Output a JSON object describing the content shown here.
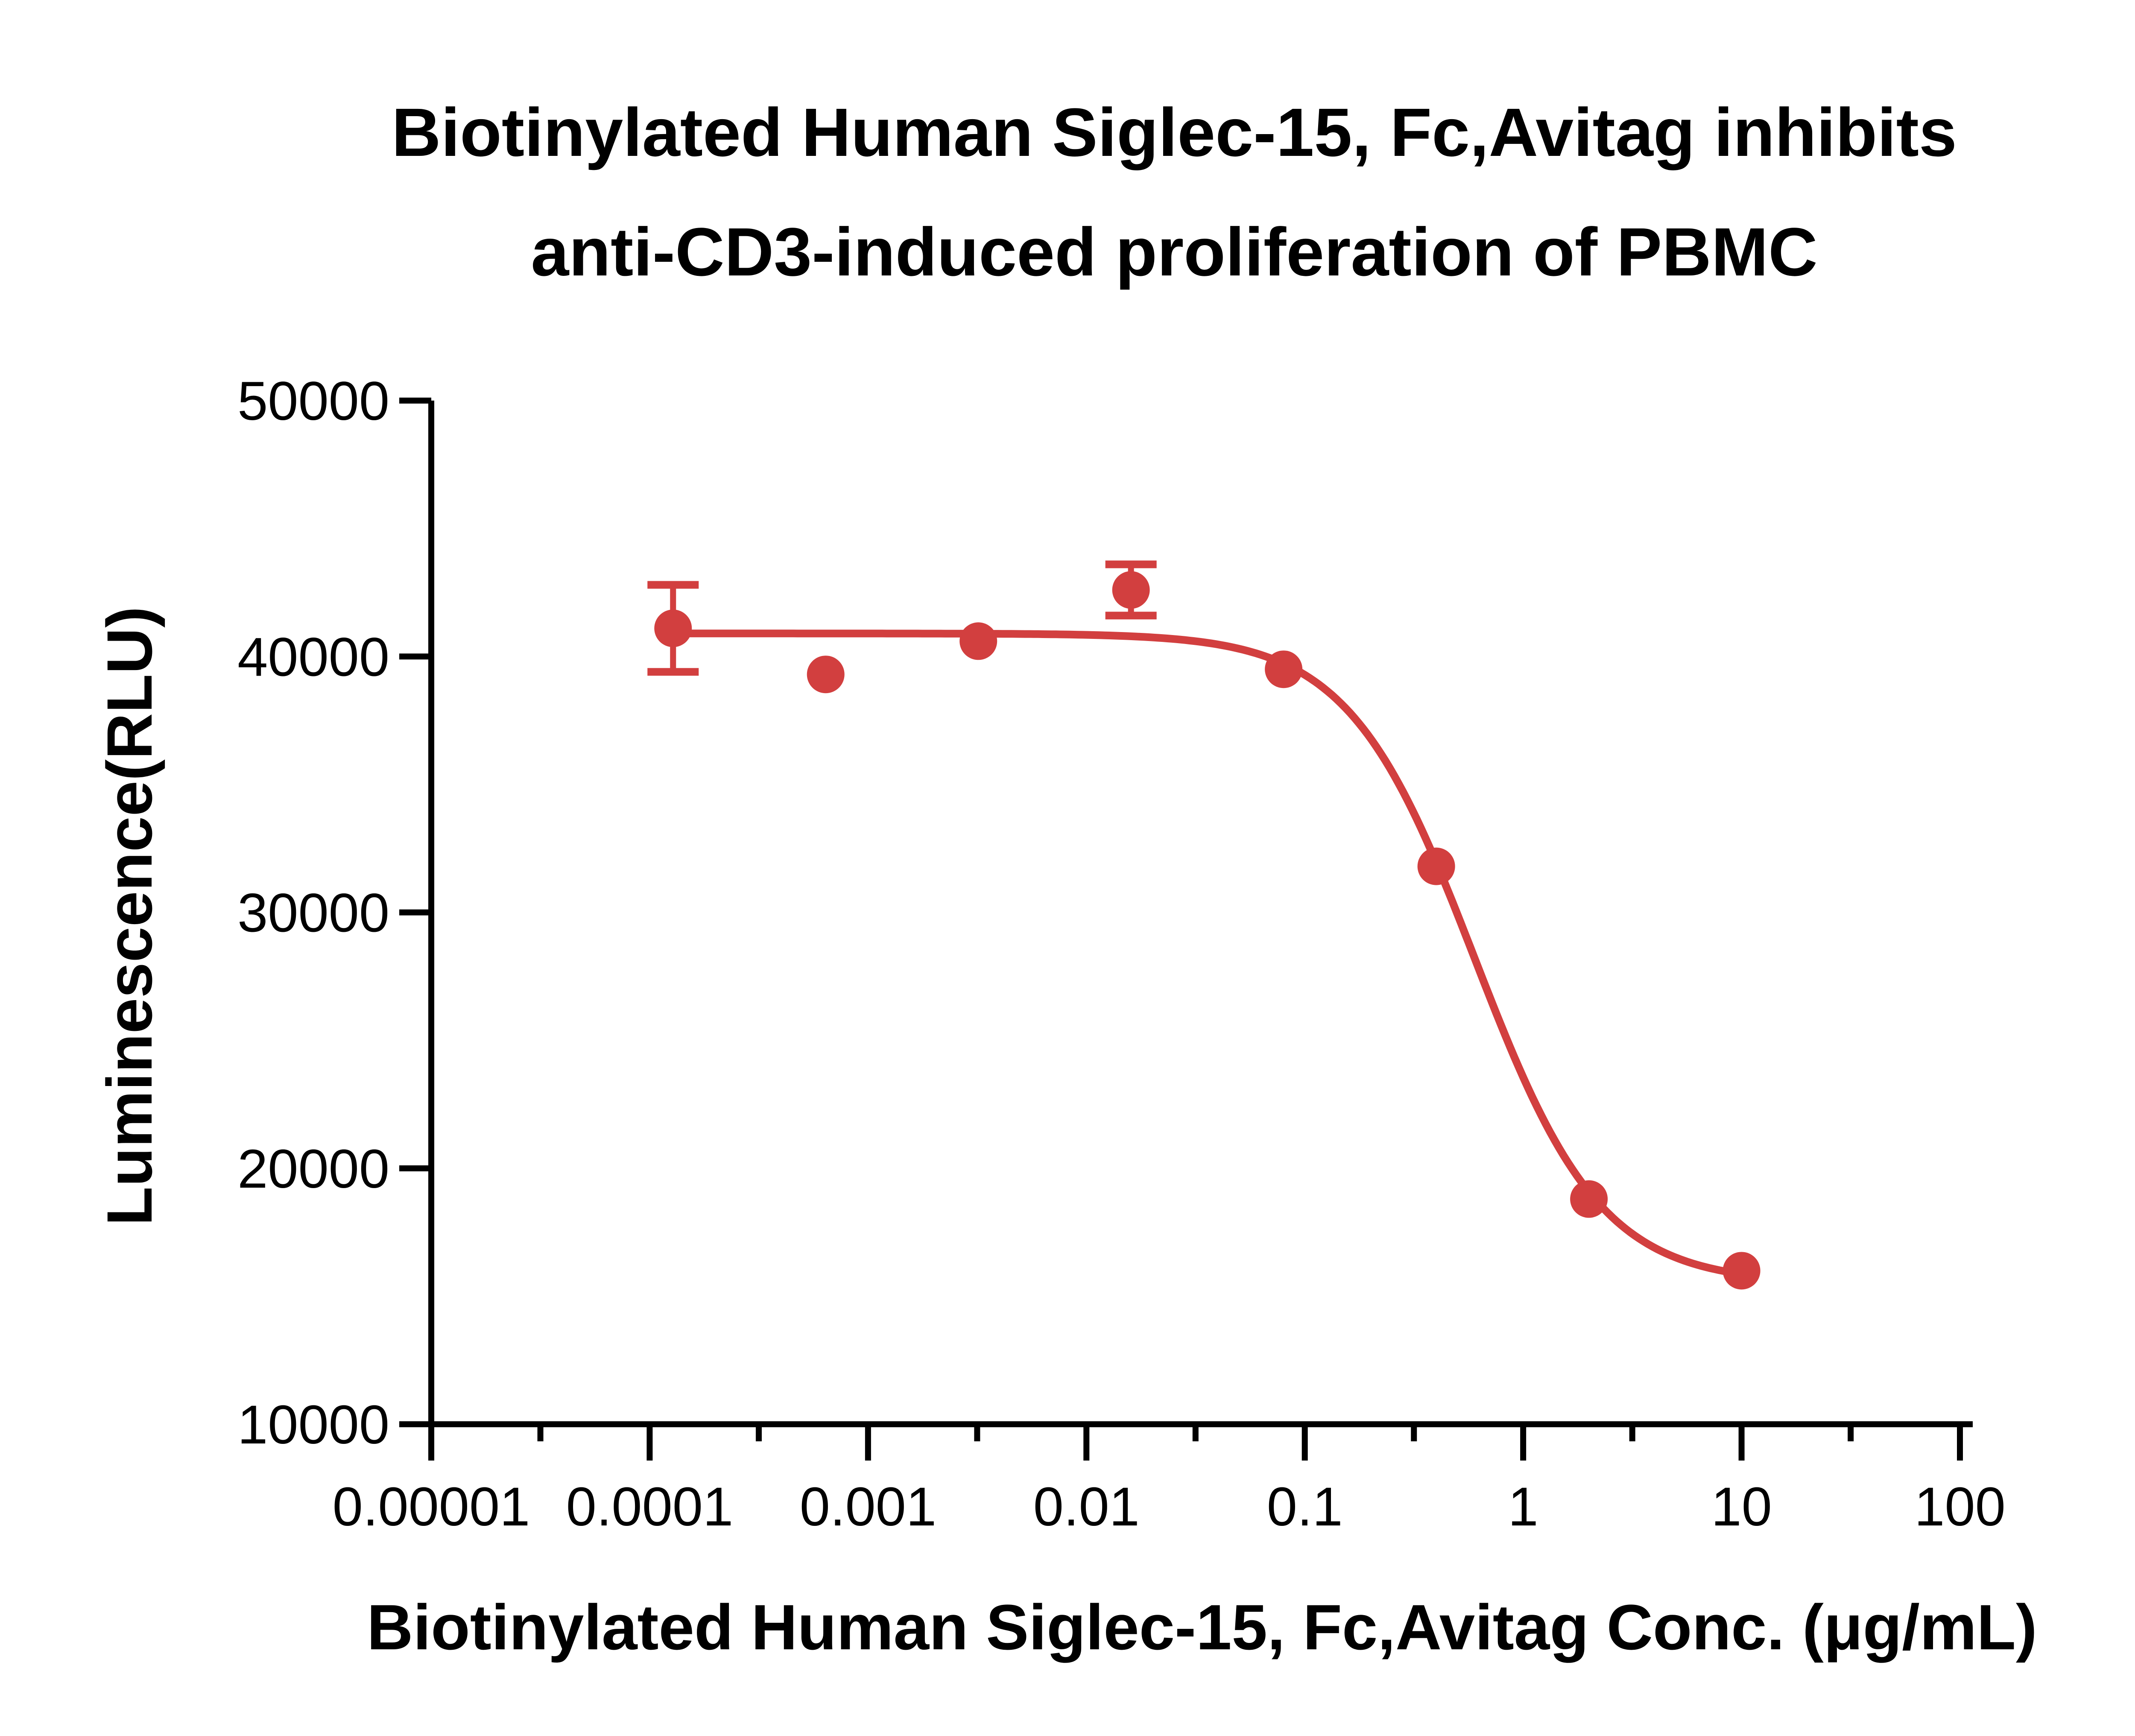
{
  "chart_data": {
    "type": "scatter",
    "title_lines": [
      "Biotinylated Human Siglec-15, Fc,Avitag inhibits",
      "anti-CD3-induced proliferation of PBMC"
    ],
    "xlabel": "Biotinylated Human Siglec-15, Fc,Avitag Conc. (μg/mL)",
    "ylabel": "Luminescence(RLU)",
    "xscale": "log",
    "xlim": [
      1e-05,
      100
    ],
    "ylim": [
      10000,
      50000
    ],
    "x_ticks": [
      {
        "value": 1e-05,
        "label": "0.00001"
      },
      {
        "value": 0.0001,
        "label": "0.0001"
      },
      {
        "value": 0.001,
        "label": "0.001"
      },
      {
        "value": 0.01,
        "label": "0.01"
      },
      {
        "value": 0.1,
        "label": "0.1"
      },
      {
        "value": 1,
        "label": "1"
      },
      {
        "value": 10,
        "label": "10"
      },
      {
        "value": 100,
        "label": "100"
      }
    ],
    "y_ticks": [
      {
        "value": 10000,
        "label": "10000"
      },
      {
        "value": 20000,
        "label": "20000"
      },
      {
        "value": 30000,
        "label": "30000"
      },
      {
        "value": 40000,
        "label": "40000"
      },
      {
        "value": 50000,
        "label": "50000"
      }
    ],
    "color": "#d23f3f",
    "series": [
      {
        "name": "Biotinylated Human Siglec-15, Fc,Avitag",
        "points": [
          {
            "x": 0.000128,
            "y": 41100,
            "err": 1700
          },
          {
            "x": 0.00064,
            "y": 39300,
            "err": 0
          },
          {
            "x": 0.0032,
            "y": 40600,
            "err": 0
          },
          {
            "x": 0.016,
            "y": 42600,
            "err": 1000
          },
          {
            "x": 0.08,
            "y": 39500,
            "err": 0
          },
          {
            "x": 0.4,
            "y": 31800,
            "err": 0
          },
          {
            "x": 2,
            "y": 18800,
            "err": 0
          },
          {
            "x": 10,
            "y": 16000,
            "err": 0
          }
        ],
        "fit": {
          "model": "4PL",
          "top": 40900,
          "bottom": 15500,
          "ec50": 0.6,
          "hill": 1.5
        }
      }
    ]
  }
}
